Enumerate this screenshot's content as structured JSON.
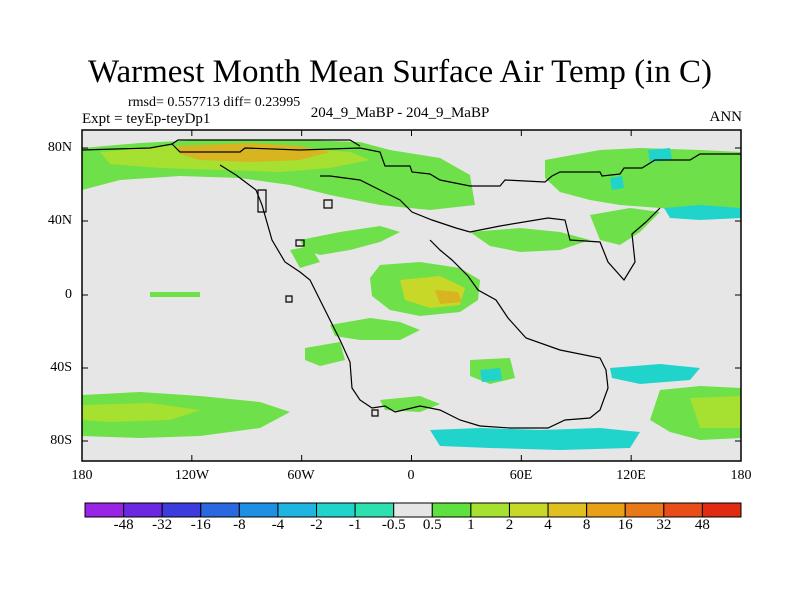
{
  "plot": {
    "title": "Warmest Month Mean Surface Air Temp (in C)",
    "stats": "rmsd= 0.557713 diff= 0.23995",
    "expt": "Expt = teyEp-teyDp1",
    "comparison": "204_9_MaBP - 204_9_MaBP",
    "season": "ANN"
  },
  "axes": {
    "lat_ticks": [
      "80N",
      "40N",
      "0",
      "40S",
      "80S"
    ],
    "lon_ticks": [
      "180",
      "120W",
      "60W",
      "0",
      "60E",
      "120E",
      "180"
    ]
  },
  "colorbar": {
    "labels": [
      "-48",
      "-32",
      "-16",
      "-8",
      "-4",
      "-2",
      "-1",
      "-0.5",
      "0.5",
      "1",
      "2",
      "4",
      "8",
      "16",
      "32",
      "48"
    ],
    "colors": [
      "#9a24e6",
      "#6a28e0",
      "#3c3cdc",
      "#2a68e0",
      "#1e90e4",
      "#20b4e0",
      "#20d4cc",
      "#2ee0b0",
      "#e6e6e6",
      "#5ee040",
      "#a6e030",
      "#c8d828",
      "#e0c020",
      "#e8a018",
      "#e87818",
      "#e84c18",
      "#e02a12"
    ]
  },
  "field_colors": {
    "neutral": "#e6e6e6",
    "green": "#6ee04a",
    "lightgreen": "#a6e030",
    "yellowgreen": "#c8d828",
    "orange": "#d8b420",
    "cyan": "#20d4cc",
    "coast": "#000000"
  }
}
